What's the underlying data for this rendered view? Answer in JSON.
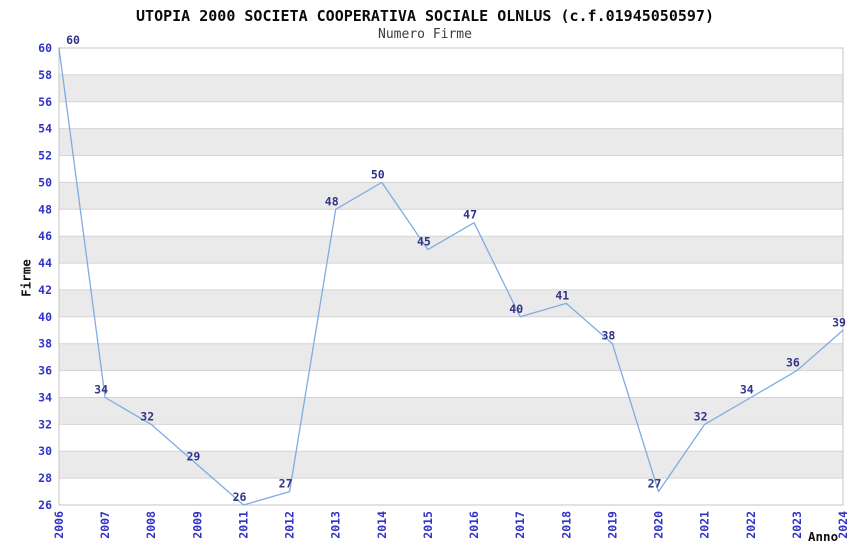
{
  "header": {
    "title": "UTOPIA 2000 SOCIETA COOPERATIVA SOCIALE OLNLUS (c.f.01945050597)",
    "subtitle": "Numero Firme"
  },
  "chart_data": {
    "type": "line",
    "title": "UTOPIA 2000 SOCIETA COOPERATIVA SOCIALE OLNLUS (c.f.01945050597)",
    "subtitle": "Numero Firme",
    "xlabel": "Anno",
    "ylabel": "Firme",
    "categories": [
      "2006",
      "2007",
      "2008",
      "2009",
      "2011",
      "2012",
      "2013",
      "2014",
      "2015",
      "2016",
      "2017",
      "2018",
      "2019",
      "2020",
      "2021",
      "2022",
      "2023",
      "2024"
    ],
    "values": [
      60,
      34,
      32,
      29,
      26,
      27,
      48,
      50,
      45,
      47,
      40,
      41,
      38,
      27,
      32,
      34,
      36,
      39
    ],
    "point_labels": [
      "60",
      "34",
      "32",
      "29",
      "26",
      "27",
      "48",
      "50",
      "45",
      "47",
      "40",
      "41",
      "38",
      "27",
      "32",
      "34",
      "36",
      "39"
    ],
    "ylim": [
      26,
      60
    ],
    "ytick_step": 2,
    "grid": "horizontal-bands",
    "legend": "none",
    "colors": {
      "line": "#7FACE1",
      "point_label": "#333388",
      "tick_label": "#3232C8",
      "band": "#EAEAEA",
      "gridline": "#D4D4D4",
      "plot_border": "#C6C6C6",
      "background": "#FFFFFF"
    }
  }
}
